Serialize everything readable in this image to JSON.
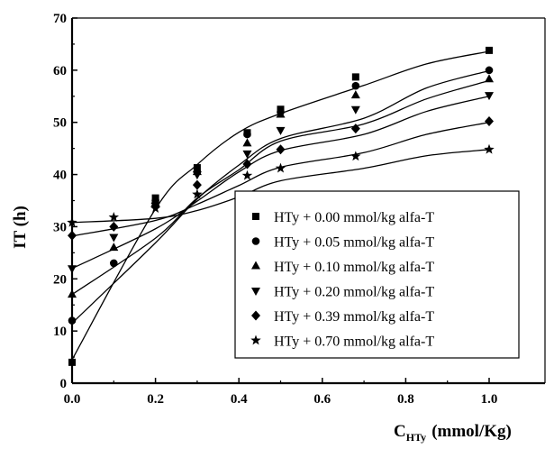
{
  "chart_data": {
    "type": "scatter",
    "xlabel": "C",
    "xlabel_sub": "HTy",
    "xlabel_unit": "(mmol/Kg)",
    "ylabel": "IT (h)",
    "xlim": [
      0.0,
      1.0
    ],
    "ylim": [
      0,
      70
    ],
    "xticks": [
      0.0,
      0.2,
      0.4,
      0.6,
      0.8,
      1.0
    ],
    "xtick_labels": [
      "0.0",
      "0.2",
      "0.4",
      "0.6",
      "0.8",
      "1.0"
    ],
    "yticks": [
      0,
      10,
      20,
      30,
      40,
      50,
      60,
      70
    ],
    "ytick_labels": [
      "0",
      "10",
      "20",
      "30",
      "40",
      "50",
      "60",
      "70"
    ],
    "grid": false,
    "legend_position": "bottom-right",
    "fitted_curves": true,
    "series": [
      {
        "name": "HTy + 0.00 mmol/kg alfa-T",
        "marker": "square",
        "x": [
          0.0,
          0.2,
          0.3,
          0.42,
          0.5,
          0.68,
          1.0
        ],
        "y": [
          4,
          35.5,
          41.3,
          48,
          52.5,
          58.7,
          63.8
        ],
        "fit": [
          4.5,
          33.4,
          41.9,
          48.1,
          51.7,
          57.1,
          61.2,
          63.6
        ]
      },
      {
        "name": "HTy + 0.05 mmol/kg alfa-T",
        "marker": "circle",
        "x": [
          0.0,
          0.1,
          0.2,
          0.3,
          0.42,
          0.5,
          0.68,
          1.0
        ],
        "y": [
          12,
          23,
          35,
          40.5,
          47.7,
          52,
          57,
          60
        ],
        "fit": [
          11.5,
          26.9,
          35.3,
          41.8,
          46.9,
          50.8,
          56.6,
          59.9
        ]
      },
      {
        "name": "HTy + 0.10 mmol/kg alfa-T",
        "marker": "triangle-up",
        "x": [
          0.0,
          0.1,
          0.2,
          0.3,
          0.42,
          0.5,
          0.68,
          1.0
        ],
        "y": [
          17,
          26,
          35,
          40.5,
          46,
          51.5,
          55.2,
          58.3
        ],
        "fit": [
          17,
          27.8,
          35.5,
          40.9,
          46.4,
          49.7,
          54.5,
          58
        ]
      },
      {
        "name": "HTy + 0.20 mmol/kg alfa-T",
        "marker": "triangle-down",
        "x": [
          0.0,
          0.1,
          0.2,
          0.3,
          0.42,
          0.5,
          0.68,
          1.0
        ],
        "y": [
          22,
          28,
          34,
          40,
          44,
          48.5,
          52.5,
          55.2
        ],
        "fit": [
          22,
          29.6,
          34.9,
          40.5,
          44.6,
          47.7,
          52.1,
          55
        ]
      },
      {
        "name": "HTy + 0.39 mmol/kg alfa-T",
        "marker": "diamond",
        "x": [
          0.0,
          0.1,
          0.2,
          0.3,
          0.42,
          0.5,
          0.68,
          1.0
        ],
        "y": [
          28.3,
          30,
          34,
          38,
          42,
          44.8,
          48.8,
          50.2
        ],
        "fit": [
          28.2,
          31.2,
          34.3,
          37.9,
          41.4,
          44.2,
          47.7,
          50
        ]
      },
      {
        "name": "HTy + 0.70 mmol/kg alfa-T",
        "marker": "star",
        "x": [
          0.0,
          0.1,
          0.2,
          0.3,
          0.42,
          0.5,
          0.68,
          1.0
        ],
        "y": [
          30.8,
          31.8,
          33.5,
          36.2,
          39.8,
          41.2,
          43.5,
          44.8
        ],
        "fit": [
          30.8,
          31.6,
          33.1,
          35.7,
          38.8,
          41.2,
          43.6,
          44.8
        ]
      }
    ]
  }
}
